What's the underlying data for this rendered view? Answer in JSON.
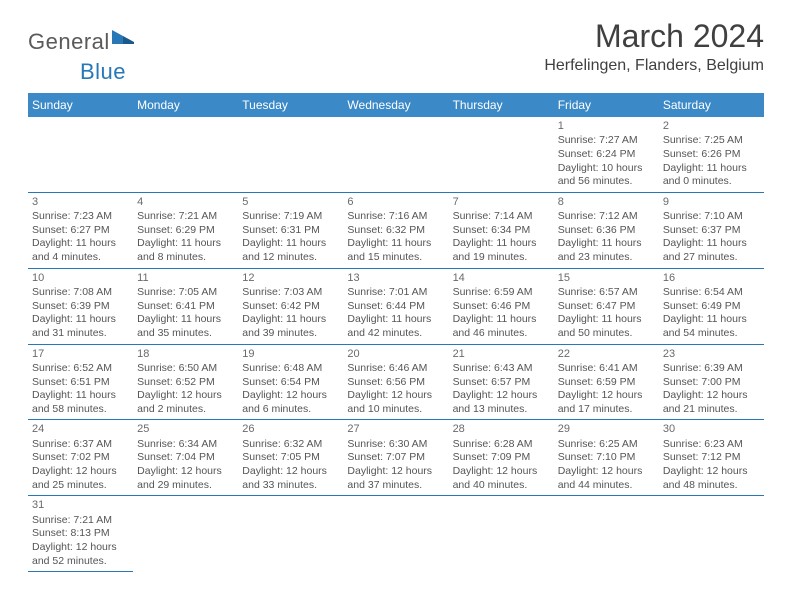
{
  "logo": {
    "general": "General",
    "blue": "Blue"
  },
  "title": "March 2024",
  "location": "Herfelingen, Flanders, Belgium",
  "colors": {
    "header_bg": "#3b89c7",
    "header_text": "#ffffff",
    "border": "#2878b8",
    "text": "#555555",
    "title_text": "#404040"
  },
  "weekdays": [
    "Sunday",
    "Monday",
    "Tuesday",
    "Wednesday",
    "Thursday",
    "Friday",
    "Saturday"
  ],
  "cells": [
    {
      "blank": true
    },
    {
      "blank": true
    },
    {
      "blank": true
    },
    {
      "blank": true
    },
    {
      "blank": true
    },
    {
      "day": "1",
      "sunrise": "Sunrise: 7:27 AM",
      "sunset": "Sunset: 6:24 PM",
      "dl1": "Daylight: 10 hours",
      "dl2": "and 56 minutes."
    },
    {
      "day": "2",
      "sunrise": "Sunrise: 7:25 AM",
      "sunset": "Sunset: 6:26 PM",
      "dl1": "Daylight: 11 hours",
      "dl2": "and 0 minutes."
    },
    {
      "day": "3",
      "sunrise": "Sunrise: 7:23 AM",
      "sunset": "Sunset: 6:27 PM",
      "dl1": "Daylight: 11 hours",
      "dl2": "and 4 minutes."
    },
    {
      "day": "4",
      "sunrise": "Sunrise: 7:21 AM",
      "sunset": "Sunset: 6:29 PM",
      "dl1": "Daylight: 11 hours",
      "dl2": "and 8 minutes."
    },
    {
      "day": "5",
      "sunrise": "Sunrise: 7:19 AM",
      "sunset": "Sunset: 6:31 PM",
      "dl1": "Daylight: 11 hours",
      "dl2": "and 12 minutes."
    },
    {
      "day": "6",
      "sunrise": "Sunrise: 7:16 AM",
      "sunset": "Sunset: 6:32 PM",
      "dl1": "Daylight: 11 hours",
      "dl2": "and 15 minutes."
    },
    {
      "day": "7",
      "sunrise": "Sunrise: 7:14 AM",
      "sunset": "Sunset: 6:34 PM",
      "dl1": "Daylight: 11 hours",
      "dl2": "and 19 minutes."
    },
    {
      "day": "8",
      "sunrise": "Sunrise: 7:12 AM",
      "sunset": "Sunset: 6:36 PM",
      "dl1": "Daylight: 11 hours",
      "dl2": "and 23 minutes."
    },
    {
      "day": "9",
      "sunrise": "Sunrise: 7:10 AM",
      "sunset": "Sunset: 6:37 PM",
      "dl1": "Daylight: 11 hours",
      "dl2": "and 27 minutes."
    },
    {
      "day": "10",
      "sunrise": "Sunrise: 7:08 AM",
      "sunset": "Sunset: 6:39 PM",
      "dl1": "Daylight: 11 hours",
      "dl2": "and 31 minutes."
    },
    {
      "day": "11",
      "sunrise": "Sunrise: 7:05 AM",
      "sunset": "Sunset: 6:41 PM",
      "dl1": "Daylight: 11 hours",
      "dl2": "and 35 minutes."
    },
    {
      "day": "12",
      "sunrise": "Sunrise: 7:03 AM",
      "sunset": "Sunset: 6:42 PM",
      "dl1": "Daylight: 11 hours",
      "dl2": "and 39 minutes."
    },
    {
      "day": "13",
      "sunrise": "Sunrise: 7:01 AM",
      "sunset": "Sunset: 6:44 PM",
      "dl1": "Daylight: 11 hours",
      "dl2": "and 42 minutes."
    },
    {
      "day": "14",
      "sunrise": "Sunrise: 6:59 AM",
      "sunset": "Sunset: 6:46 PM",
      "dl1": "Daylight: 11 hours",
      "dl2": "and 46 minutes."
    },
    {
      "day": "15",
      "sunrise": "Sunrise: 6:57 AM",
      "sunset": "Sunset: 6:47 PM",
      "dl1": "Daylight: 11 hours",
      "dl2": "and 50 minutes."
    },
    {
      "day": "16",
      "sunrise": "Sunrise: 6:54 AM",
      "sunset": "Sunset: 6:49 PM",
      "dl1": "Daylight: 11 hours",
      "dl2": "and 54 minutes."
    },
    {
      "day": "17",
      "sunrise": "Sunrise: 6:52 AM",
      "sunset": "Sunset: 6:51 PM",
      "dl1": "Daylight: 11 hours",
      "dl2": "and 58 minutes."
    },
    {
      "day": "18",
      "sunrise": "Sunrise: 6:50 AM",
      "sunset": "Sunset: 6:52 PM",
      "dl1": "Daylight: 12 hours",
      "dl2": "and 2 minutes."
    },
    {
      "day": "19",
      "sunrise": "Sunrise: 6:48 AM",
      "sunset": "Sunset: 6:54 PM",
      "dl1": "Daylight: 12 hours",
      "dl2": "and 6 minutes."
    },
    {
      "day": "20",
      "sunrise": "Sunrise: 6:46 AM",
      "sunset": "Sunset: 6:56 PM",
      "dl1": "Daylight: 12 hours",
      "dl2": "and 10 minutes."
    },
    {
      "day": "21",
      "sunrise": "Sunrise: 6:43 AM",
      "sunset": "Sunset: 6:57 PM",
      "dl1": "Daylight: 12 hours",
      "dl2": "and 13 minutes."
    },
    {
      "day": "22",
      "sunrise": "Sunrise: 6:41 AM",
      "sunset": "Sunset: 6:59 PM",
      "dl1": "Daylight: 12 hours",
      "dl2": "and 17 minutes."
    },
    {
      "day": "23",
      "sunrise": "Sunrise: 6:39 AM",
      "sunset": "Sunset: 7:00 PM",
      "dl1": "Daylight: 12 hours",
      "dl2": "and 21 minutes."
    },
    {
      "day": "24",
      "sunrise": "Sunrise: 6:37 AM",
      "sunset": "Sunset: 7:02 PM",
      "dl1": "Daylight: 12 hours",
      "dl2": "and 25 minutes."
    },
    {
      "day": "25",
      "sunrise": "Sunrise: 6:34 AM",
      "sunset": "Sunset: 7:04 PM",
      "dl1": "Daylight: 12 hours",
      "dl2": "and 29 minutes."
    },
    {
      "day": "26",
      "sunrise": "Sunrise: 6:32 AM",
      "sunset": "Sunset: 7:05 PM",
      "dl1": "Daylight: 12 hours",
      "dl2": "and 33 minutes."
    },
    {
      "day": "27",
      "sunrise": "Sunrise: 6:30 AM",
      "sunset": "Sunset: 7:07 PM",
      "dl1": "Daylight: 12 hours",
      "dl2": "and 37 minutes."
    },
    {
      "day": "28",
      "sunrise": "Sunrise: 6:28 AM",
      "sunset": "Sunset: 7:09 PM",
      "dl1": "Daylight: 12 hours",
      "dl2": "and 40 minutes."
    },
    {
      "day": "29",
      "sunrise": "Sunrise: 6:25 AM",
      "sunset": "Sunset: 7:10 PM",
      "dl1": "Daylight: 12 hours",
      "dl2": "and 44 minutes."
    },
    {
      "day": "30",
      "sunrise": "Sunrise: 6:23 AM",
      "sunset": "Sunset: 7:12 PM",
      "dl1": "Daylight: 12 hours",
      "dl2": "and 48 minutes."
    },
    {
      "day": "31",
      "sunrise": "Sunrise: 7:21 AM",
      "sunset": "Sunset: 8:13 PM",
      "dl1": "Daylight: 12 hours",
      "dl2": "and 52 minutes."
    },
    {
      "blank": true,
      "noborder": true
    },
    {
      "blank": true,
      "noborder": true
    },
    {
      "blank": true,
      "noborder": true
    },
    {
      "blank": true,
      "noborder": true
    },
    {
      "blank": true,
      "noborder": true
    },
    {
      "blank": true,
      "noborder": true
    }
  ]
}
